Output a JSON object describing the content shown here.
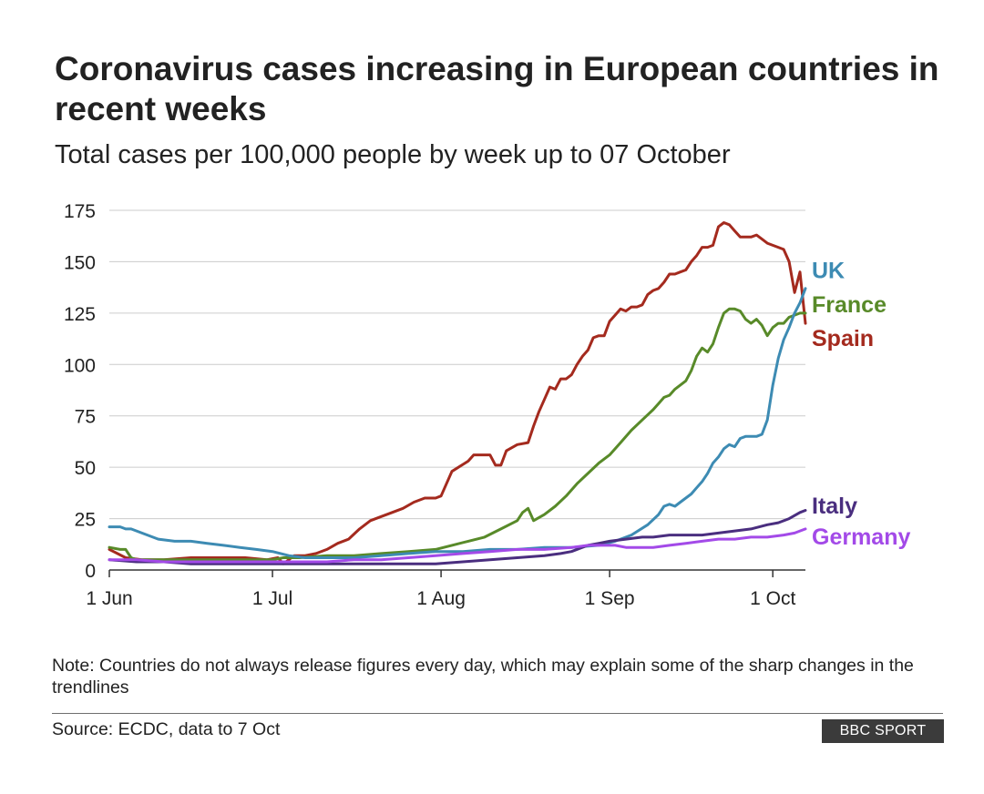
{
  "title": "Coronavirus cases increasing in European countries in recent weeks",
  "subtitle": "Total cases per 100,000 people by week up to 07 October",
  "note": "Note: Countries do not always release figures every day, which may explain some of the sharp changes in the trendlines",
  "source": "Source: ECDC, data to 7 Oct",
  "logo": "BBC SPORT",
  "chart_data": {
    "type": "line",
    "title": "Coronavirus cases increasing in European countries in recent weeks",
    "subtitle": "Total cases per 100,000 people by week up to 07 October",
    "xlabel": "",
    "ylabel": "",
    "x_unit": "days since 1 Jun",
    "xlim": [
      0,
      128
    ],
    "ylim": [
      0,
      175
    ],
    "yticks": [
      0,
      25,
      50,
      75,
      100,
      125,
      150,
      175
    ],
    "xticks": [
      {
        "day": 0,
        "label": "1 Jun"
      },
      {
        "day": 30,
        "label": "1 Jul"
      },
      {
        "day": 61,
        "label": "1 Aug"
      },
      {
        "day": 92,
        "label": "1 Sep"
      },
      {
        "day": 122,
        "label": "1 Oct"
      }
    ],
    "grid": true,
    "legend": "right",
    "series": [
      {
        "name": "Spain",
        "color": "#a42a1e",
        "points": [
          [
            0,
            10
          ],
          [
            3,
            6
          ],
          [
            6,
            5
          ],
          [
            10,
            5
          ],
          [
            15,
            6
          ],
          [
            20,
            6
          ],
          [
            25,
            6
          ],
          [
            29,
            5
          ],
          [
            31,
            6
          ],
          [
            32,
            3
          ],
          [
            34,
            7
          ],
          [
            36,
            7
          ],
          [
            38,
            8
          ],
          [
            40,
            10
          ],
          [
            42,
            13
          ],
          [
            44,
            15
          ],
          [
            46,
            20
          ],
          [
            48,
            24
          ],
          [
            50,
            26
          ],
          [
            52,
            28
          ],
          [
            54,
            30
          ],
          [
            56,
            33
          ],
          [
            58,
            35
          ],
          [
            60,
            35
          ],
          [
            61,
            36
          ],
          [
            63,
            48
          ],
          [
            66,
            53
          ],
          [
            67,
            56
          ],
          [
            70,
            56
          ],
          [
            71,
            51
          ],
          [
            72,
            51
          ],
          [
            73,
            58
          ],
          [
            75,
            61
          ],
          [
            77,
            62
          ],
          [
            78,
            70
          ],
          [
            79,
            77
          ],
          [
            80,
            83
          ],
          [
            81,
            89
          ],
          [
            82,
            88
          ],
          [
            83,
            93
          ],
          [
            84,
            93
          ],
          [
            85,
            95
          ],
          [
            86,
            100
          ],
          [
            87,
            104
          ],
          [
            88,
            107
          ],
          [
            89,
            113
          ],
          [
            90,
            114
          ],
          [
            91,
            114
          ],
          [
            92,
            121
          ],
          [
            93,
            124
          ],
          [
            94,
            127
          ],
          [
            95,
            126
          ],
          [
            96,
            128
          ],
          [
            97,
            128
          ],
          [
            98,
            129
          ],
          [
            99,
            134
          ],
          [
            100,
            136
          ],
          [
            101,
            137
          ],
          [
            102,
            140
          ],
          [
            103,
            144
          ],
          [
            104,
            144
          ],
          [
            105,
            145
          ],
          [
            106,
            146
          ],
          [
            107,
            150
          ],
          [
            108,
            153
          ],
          [
            109,
            157
          ],
          [
            110,
            157
          ],
          [
            111,
            158
          ],
          [
            112,
            167
          ],
          [
            113,
            169
          ],
          [
            114,
            168
          ],
          [
            115,
            165
          ],
          [
            116,
            162
          ],
          [
            117,
            162
          ],
          [
            118,
            162
          ],
          [
            119,
            163
          ],
          [
            120,
            161
          ],
          [
            121,
            159
          ],
          [
            122,
            158
          ],
          [
            123,
            157
          ],
          [
            124,
            156
          ],
          [
            125,
            150
          ],
          [
            126,
            135
          ],
          [
            127,
            145
          ],
          [
            128,
            120
          ]
        ]
      },
      {
        "name": "France",
        "color": "#588a29",
        "points": [
          [
            0,
            11
          ],
          [
            2,
            10
          ],
          [
            3,
            10
          ],
          [
            4,
            6
          ],
          [
            5,
            5
          ],
          [
            8,
            5
          ],
          [
            12,
            5
          ],
          [
            20,
            5
          ],
          [
            25,
            5
          ],
          [
            30,
            5
          ],
          [
            32,
            6
          ],
          [
            35,
            6
          ],
          [
            40,
            7
          ],
          [
            45,
            7
          ],
          [
            50,
            8
          ],
          [
            55,
            9
          ],
          [
            60,
            10
          ],
          [
            63,
            12
          ],
          [
            66,
            14
          ],
          [
            69,
            16
          ],
          [
            72,
            20
          ],
          [
            75,
            24
          ],
          [
            76,
            28
          ],
          [
            77,
            30
          ],
          [
            78,
            24
          ],
          [
            80,
            27
          ],
          [
            82,
            31
          ],
          [
            84,
            36
          ],
          [
            86,
            42
          ],
          [
            88,
            47
          ],
          [
            90,
            52
          ],
          [
            92,
            56
          ],
          [
            94,
            62
          ],
          [
            96,
            68
          ],
          [
            98,
            73
          ],
          [
            100,
            78
          ],
          [
            101,
            81
          ],
          [
            102,
            84
          ],
          [
            103,
            85
          ],
          [
            104,
            88
          ],
          [
            106,
            92
          ],
          [
            107,
            97
          ],
          [
            108,
            104
          ],
          [
            109,
            108
          ],
          [
            110,
            106
          ],
          [
            111,
            110
          ],
          [
            112,
            118
          ],
          [
            113,
            125
          ],
          [
            114,
            127
          ],
          [
            115,
            127
          ],
          [
            116,
            126
          ],
          [
            117,
            122
          ],
          [
            118,
            120
          ],
          [
            119,
            122
          ],
          [
            120,
            119
          ],
          [
            121,
            114
          ],
          [
            122,
            118
          ],
          [
            123,
            120
          ],
          [
            124,
            120
          ],
          [
            125,
            123
          ],
          [
            126,
            124
          ],
          [
            127,
            125
          ],
          [
            128,
            125
          ]
        ]
      },
      {
        "name": "UK",
        "color": "#3d8bb3",
        "points": [
          [
            0,
            21
          ],
          [
            2,
            21
          ],
          [
            3,
            20
          ],
          [
            4,
            20
          ],
          [
            6,
            18
          ],
          [
            9,
            15
          ],
          [
            12,
            14
          ],
          [
            15,
            14
          ],
          [
            18,
            13
          ],
          [
            21,
            12
          ],
          [
            24,
            11
          ],
          [
            27,
            10
          ],
          [
            30,
            9
          ],
          [
            33,
            7
          ],
          [
            36,
            6
          ],
          [
            40,
            6
          ],
          [
            45,
            6
          ],
          [
            50,
            7
          ],
          [
            55,
            8
          ],
          [
            60,
            9
          ],
          [
            65,
            9
          ],
          [
            70,
            10
          ],
          [
            75,
            10
          ],
          [
            80,
            11
          ],
          [
            85,
            11
          ],
          [
            90,
            12
          ],
          [
            93,
            14
          ],
          [
            96,
            17
          ],
          [
            99,
            22
          ],
          [
            101,
            27
          ],
          [
            102,
            31
          ],
          [
            103,
            32
          ],
          [
            104,
            31
          ],
          [
            105,
            33
          ],
          [
            106,
            35
          ],
          [
            107,
            37
          ],
          [
            108,
            40
          ],
          [
            109,
            43
          ],
          [
            110,
            47
          ],
          [
            111,
            52
          ],
          [
            112,
            55
          ],
          [
            113,
            59
          ],
          [
            114,
            61
          ],
          [
            115,
            60
          ],
          [
            116,
            64
          ],
          [
            117,
            65
          ],
          [
            118,
            65
          ],
          [
            119,
            65
          ],
          [
            120,
            66
          ],
          [
            121,
            73
          ],
          [
            122,
            90
          ],
          [
            123,
            103
          ],
          [
            124,
            112
          ],
          [
            125,
            118
          ],
          [
            126,
            125
          ],
          [
            127,
            130
          ],
          [
            128,
            137
          ]
        ]
      },
      {
        "name": "Italy",
        "color": "#4a2e7f",
        "points": [
          [
            0,
            5
          ],
          [
            5,
            4
          ],
          [
            10,
            4
          ],
          [
            15,
            3
          ],
          [
            20,
            3
          ],
          [
            25,
            3
          ],
          [
            30,
            3
          ],
          [
            35,
            3
          ],
          [
            40,
            3
          ],
          [
            45,
            3
          ],
          [
            50,
            3
          ],
          [
            55,
            3
          ],
          [
            60,
            3
          ],
          [
            65,
            4
          ],
          [
            70,
            5
          ],
          [
            75,
            6
          ],
          [
            80,
            7
          ],
          [
            83,
            8
          ],
          [
            85,
            9
          ],
          [
            88,
            12
          ],
          [
            90,
            13
          ],
          [
            92,
            14
          ],
          [
            95,
            15
          ],
          [
            98,
            16
          ],
          [
            100,
            16
          ],
          [
            103,
            17
          ],
          [
            106,
            17
          ],
          [
            109,
            17
          ],
          [
            112,
            18
          ],
          [
            115,
            19
          ],
          [
            118,
            20
          ],
          [
            121,
            22
          ],
          [
            123,
            23
          ],
          [
            125,
            25
          ],
          [
            127,
            28
          ],
          [
            128,
            29
          ]
        ]
      },
      {
        "name": "Germany",
        "color": "#a34ae8",
        "points": [
          [
            0,
            5
          ],
          [
            5,
            5
          ],
          [
            10,
            4
          ],
          [
            15,
            4
          ],
          [
            20,
            4
          ],
          [
            25,
            4
          ],
          [
            30,
            4
          ],
          [
            35,
            4
          ],
          [
            40,
            4
          ],
          [
            45,
            5
          ],
          [
            50,
            5
          ],
          [
            55,
            6
          ],
          [
            60,
            7
          ],
          [
            65,
            8
          ],
          [
            70,
            9
          ],
          [
            75,
            10
          ],
          [
            80,
            10
          ],
          [
            85,
            11
          ],
          [
            88,
            12
          ],
          [
            90,
            12
          ],
          [
            93,
            12
          ],
          [
            95,
            11
          ],
          [
            97,
            11
          ],
          [
            100,
            11
          ],
          [
            103,
            12
          ],
          [
            106,
            13
          ],
          [
            109,
            14
          ],
          [
            112,
            15
          ],
          [
            115,
            15
          ],
          [
            118,
            16
          ],
          [
            121,
            16
          ],
          [
            124,
            17
          ],
          [
            126,
            18
          ],
          [
            128,
            20
          ]
        ]
      }
    ],
    "labels": [
      {
        "name": "UK",
        "text": "UK",
        "color": "#3d8bb3",
        "value": 145.5
      },
      {
        "name": "France",
        "text": "France",
        "color": "#588a29",
        "value": 129
      },
      {
        "name": "Spain",
        "text": "Spain",
        "color": "#a42a1e",
        "value": 112.5
      },
      {
        "name": "Italy",
        "text": "Italy",
        "color": "#4a2e7f",
        "value": 31
      },
      {
        "name": "Germany",
        "text": "Germany",
        "color": "#a34ae8",
        "value": 16
      }
    ]
  }
}
